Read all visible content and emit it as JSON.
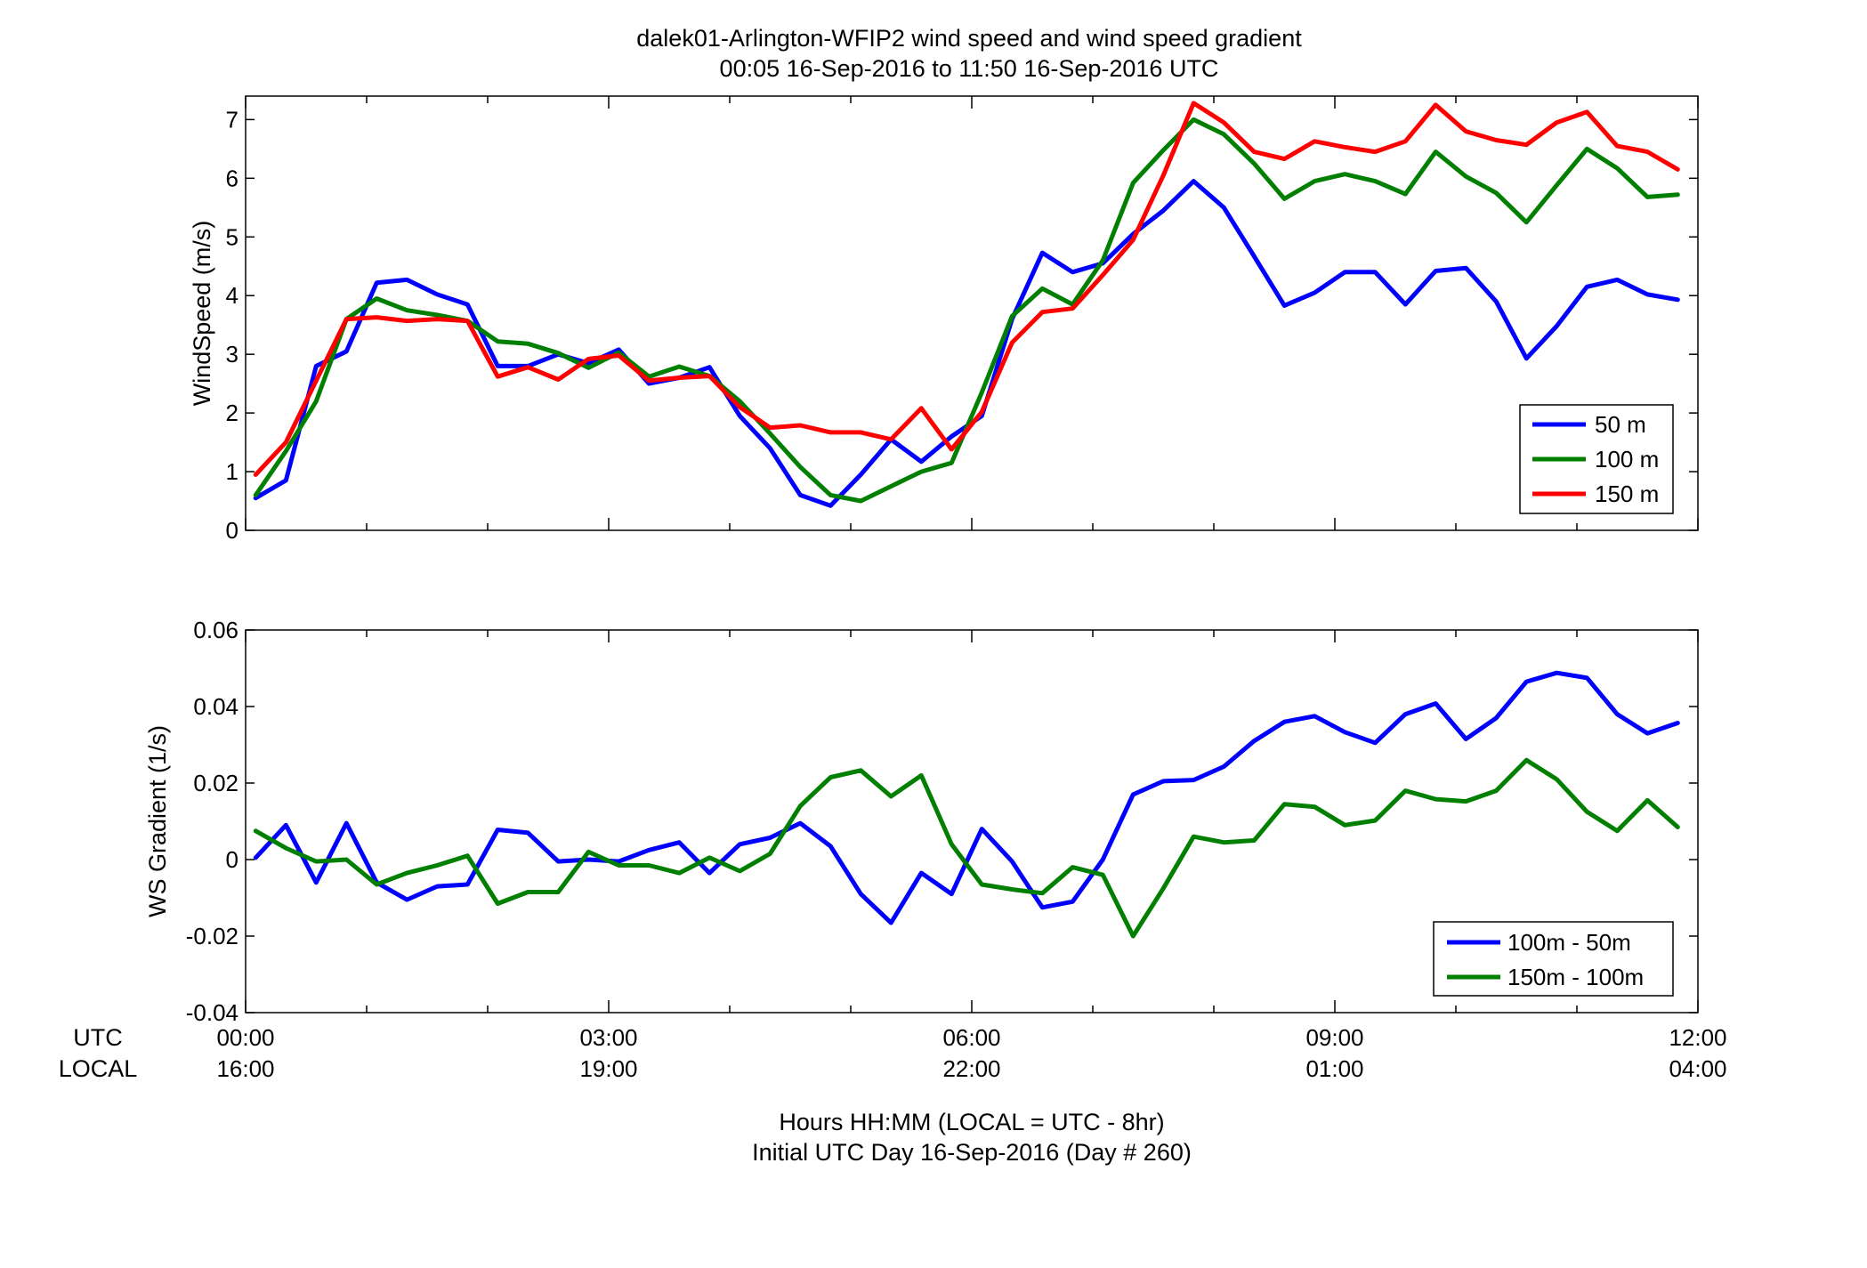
{
  "title": {
    "line1": "dalek01-Arlington-WFIP2  wind speed and wind speed gradient",
    "line2": "00:05 16-Sep-2016 to 11:50 16-Sep-2016  UTC"
  },
  "x_axis": {
    "row_labels": [
      "UTC",
      "LOCAL"
    ],
    "utc_ticks": [
      "00:00",
      "03:00",
      "06:00",
      "09:00",
      "12:00"
    ],
    "local_ticks": [
      "16:00",
      "19:00",
      "22:00",
      "01:00",
      "04:00"
    ],
    "xlabel_line1": "Hours HH:MM  (LOCAL = UTC - 8hr)",
    "xlabel_line2": "Initial UTC Day 16-Sep-2016 (Day # 260)"
  },
  "chart_data": [
    {
      "type": "line",
      "ylabel": "WindSpeed (m/s)",
      "xlim": [
        0,
        12
      ],
      "ylim": [
        0,
        7.4
      ],
      "yticks": [
        "0",
        "1",
        "2",
        "3",
        "4",
        "5",
        "6",
        "7"
      ],
      "x": [
        0.083,
        0.333,
        0.583,
        0.833,
        1.083,
        1.333,
        1.583,
        1.833,
        2.083,
        2.333,
        2.583,
        2.833,
        3.083,
        3.333,
        3.583,
        3.833,
        4.083,
        4.333,
        4.583,
        4.833,
        5.083,
        5.333,
        5.583,
        5.833,
        6.083,
        6.333,
        6.583,
        6.833,
        7.083,
        7.333,
        7.583,
        7.833,
        8.083,
        8.333,
        8.583,
        8.833,
        9.083,
        9.333,
        9.583,
        9.833,
        10.083,
        10.333,
        10.583,
        10.833,
        11.083,
        11.333,
        11.583,
        11.833
      ],
      "legend_position": "bottom-right",
      "series": [
        {
          "name": "50 m",
          "color": "#0000ff",
          "values": [
            0.55,
            0.85,
            2.8,
            3.05,
            4.22,
            4.27,
            4.02,
            3.85,
            2.8,
            2.8,
            3.0,
            2.85,
            3.08,
            2.5,
            2.6,
            2.78,
            1.95,
            1.4,
            0.6,
            0.42,
            0.95,
            1.55,
            1.17,
            1.6,
            1.95,
            3.6,
            4.73,
            4.4,
            4.55,
            5.05,
            5.45,
            5.95,
            5.5,
            4.67,
            3.83,
            4.05,
            4.4,
            4.4,
            3.85,
            4.42,
            4.47,
            3.9,
            2.93,
            3.48,
            4.15,
            4.27,
            4.02,
            3.93
          ]
        },
        {
          "name": "100 m",
          "color": "#007f00",
          "values": [
            0.6,
            1.35,
            2.2,
            3.6,
            3.95,
            3.75,
            3.67,
            3.57,
            3.22,
            3.18,
            3.02,
            2.77,
            3.03,
            2.62,
            2.79,
            2.63,
            2.2,
            1.65,
            1.08,
            0.6,
            0.5,
            0.75,
            1.0,
            1.15,
            2.35,
            3.65,
            4.12,
            3.85,
            4.6,
            5.92,
            6.48,
            7.0,
            6.75,
            6.25,
            5.65,
            5.95,
            6.07,
            5.95,
            5.73,
            6.45,
            6.03,
            5.75,
            5.25,
            5.88,
            6.5,
            6.17,
            5.68,
            5.72
          ]
        },
        {
          "name": "150 m",
          "color": "#ff0000",
          "values": [
            0.95,
            1.5,
            2.55,
            3.6,
            3.63,
            3.57,
            3.6,
            3.57,
            2.62,
            2.78,
            2.57,
            2.92,
            2.98,
            2.55,
            2.6,
            2.63,
            2.1,
            1.75,
            1.79,
            1.67,
            1.67,
            1.55,
            2.08,
            1.38,
            2.02,
            3.2,
            3.72,
            3.78,
            4.35,
            4.95,
            6.05,
            7.28,
            6.95,
            6.45,
            6.33,
            6.63,
            6.53,
            6.45,
            6.63,
            7.25,
            6.8,
            6.65,
            6.57,
            6.95,
            7.13,
            6.55,
            6.45,
            6.15
          ]
        }
      ]
    },
    {
      "type": "line",
      "ylabel": "WS Gradient (1/s)",
      "xlim": [
        0,
        12
      ],
      "ylim": [
        -0.04,
        0.06
      ],
      "yticks": [
        "-0.04",
        "-0.02",
        "0",
        "0.02",
        "0.04",
        "0.06"
      ],
      "x": [
        0.083,
        0.333,
        0.583,
        0.833,
        1.083,
        1.333,
        1.583,
        1.833,
        2.083,
        2.333,
        2.583,
        2.833,
        3.083,
        3.333,
        3.583,
        3.833,
        4.083,
        4.333,
        4.583,
        4.833,
        5.083,
        5.333,
        5.583,
        5.833,
        6.083,
        6.333,
        6.583,
        6.833,
        7.083,
        7.333,
        7.583,
        7.833,
        8.083,
        8.333,
        8.583,
        8.833,
        9.083,
        9.333,
        9.583,
        9.833,
        10.083,
        10.333,
        10.583,
        10.833,
        11.083,
        11.333,
        11.583,
        11.833
      ],
      "legend_position": "bottom-right",
      "series": [
        {
          "name": "100m - 50m",
          "color": "#0000ff",
          "values": [
            0.0005,
            0.009,
            -0.006,
            0.0095,
            -0.006,
            -0.0105,
            -0.007,
            -0.0065,
            0.0078,
            0.007,
            -0.0005,
            0.0,
            -0.0005,
            0.0025,
            0.0045,
            -0.0035,
            0.004,
            0.0057,
            0.0095,
            0.0035,
            -0.009,
            -0.0165,
            -0.0035,
            -0.009,
            0.008,
            -0.0005,
            -0.0125,
            -0.011,
            0.0,
            0.017,
            0.0205,
            0.0208,
            0.0243,
            0.031,
            0.036,
            0.0375,
            0.0333,
            0.0305,
            0.038,
            0.0408,
            0.0315,
            0.037,
            0.0465,
            0.0488,
            0.0475,
            0.038,
            0.033,
            0.0357
          ]
        },
        {
          "name": "150m - 100m",
          "color": "#007f00",
          "values": [
            0.0075,
            0.003,
            -0.0005,
            0.0,
            -0.0065,
            -0.0035,
            -0.0015,
            0.001,
            -0.0115,
            -0.0085,
            -0.0085,
            0.002,
            -0.0015,
            -0.0015,
            -0.0035,
            0.0005,
            -0.003,
            0.0015,
            0.014,
            0.0215,
            0.0233,
            0.0165,
            0.022,
            0.004,
            -0.0065,
            -0.0078,
            -0.0088,
            -0.002,
            -0.004,
            -0.02,
            -0.0075,
            0.006,
            0.0045,
            0.005,
            0.0145,
            0.0138,
            0.009,
            0.0102,
            0.018,
            0.0158,
            0.0152,
            0.018,
            0.026,
            0.021,
            0.0125,
            0.0075,
            0.0155,
            0.0085
          ]
        }
      ]
    }
  ]
}
